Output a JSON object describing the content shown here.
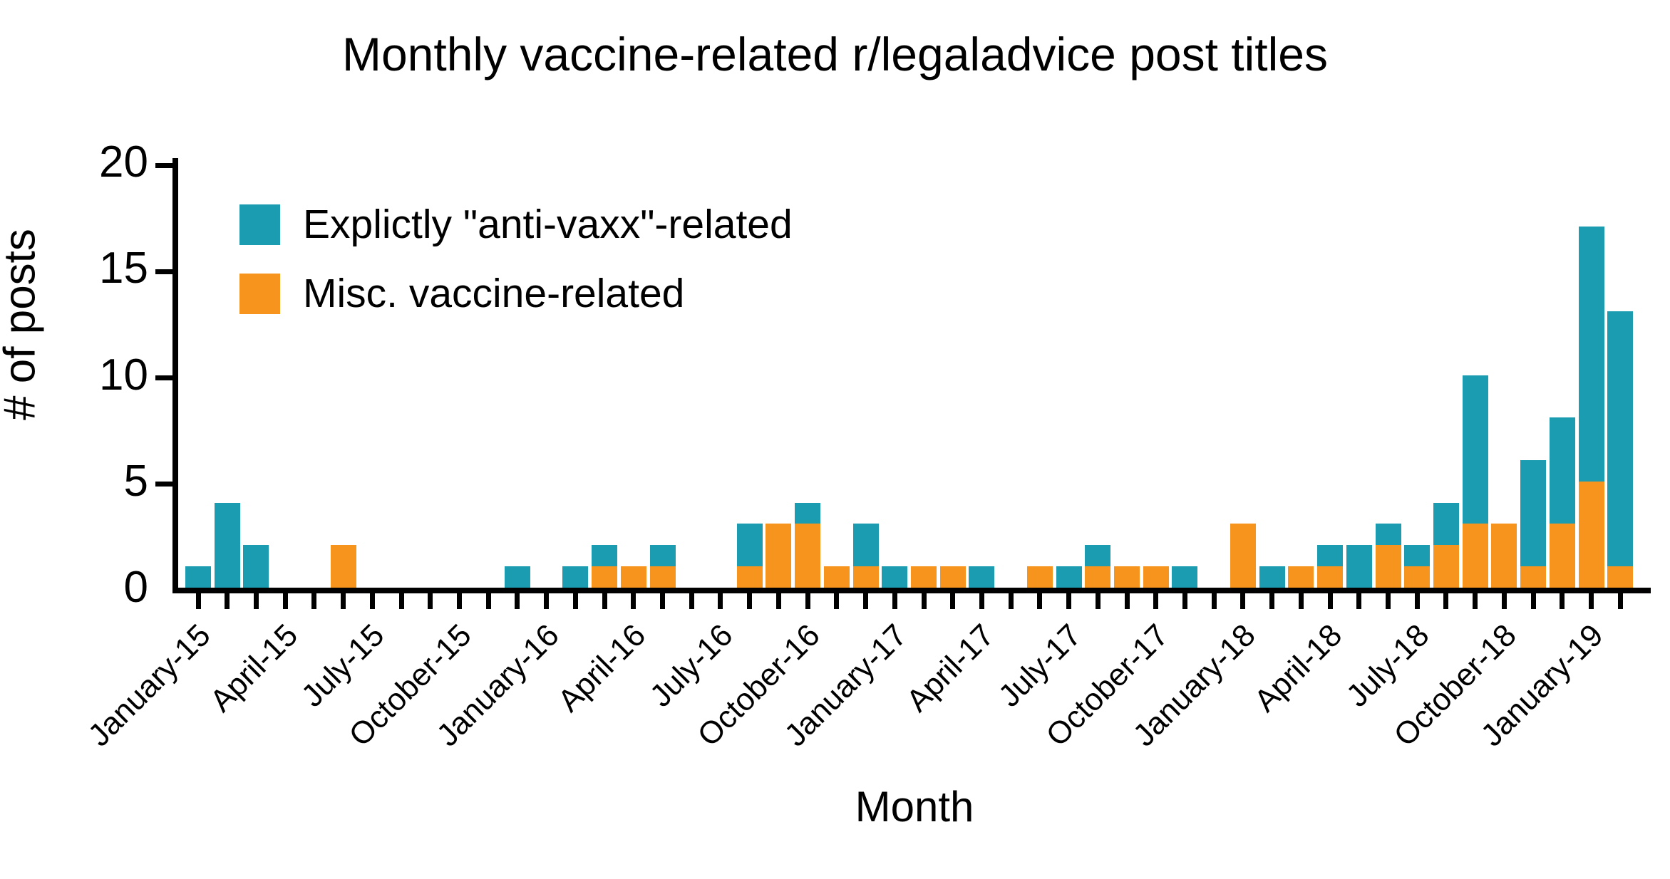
{
  "chart_data": {
    "type": "bar",
    "stacked": true,
    "title": "Monthly vaccine-related r/legaladvice post titles",
    "xlabel": "Month",
    "ylabel": "# of posts",
    "ylim": [
      0,
      20
    ],
    "yticks": [
      0,
      5,
      10,
      15,
      20
    ],
    "x_tick_label_every": 3,
    "legend_position": "top-left-inside",
    "grid": false,
    "categories": [
      "January-15",
      "February-15",
      "March-15",
      "April-15",
      "May-15",
      "June-15",
      "July-15",
      "August-15",
      "September-15",
      "October-15",
      "November-15",
      "December-15",
      "January-16",
      "February-16",
      "March-16",
      "April-16",
      "May-16",
      "June-16",
      "July-16",
      "August-16",
      "September-16",
      "October-16",
      "November-16",
      "December-16",
      "January-17",
      "February-17",
      "March-17",
      "April-17",
      "May-17",
      "June-17",
      "July-17",
      "August-17",
      "September-17",
      "October-17",
      "November-17",
      "December-17",
      "January-18",
      "February-18",
      "March-18",
      "April-18",
      "May-18",
      "June-18",
      "July-18",
      "August-18",
      "September-18",
      "October-18",
      "November-18",
      "December-18",
      "January-19",
      "February-19"
    ],
    "series": [
      {
        "name": "Misc. vaccine-related",
        "color": "#f7941e",
        "stack_order": "bottom",
        "values": [
          0,
          0,
          0,
          0,
          0,
          2,
          0,
          0,
          0,
          0,
          0,
          0,
          0,
          0,
          1,
          1,
          1,
          0,
          0,
          1,
          3,
          3,
          1,
          1,
          0,
          1,
          1,
          0,
          0,
          1,
          0,
          1,
          1,
          1,
          0,
          0,
          3,
          0,
          1,
          1,
          0,
          2,
          1,
          2,
          3,
          3,
          1,
          3,
          5,
          1
        ]
      },
      {
        "name": "Explictly \"anti-vaxx\"-related",
        "color": "#1b9cb1",
        "stack_order": "top",
        "values": [
          1,
          4,
          2,
          0,
          0,
          0,
          0,
          0,
          0,
          0,
          0,
          1,
          0,
          1,
          1,
          0,
          1,
          0,
          0,
          2,
          0,
          1,
          0,
          2,
          1,
          0,
          0,
          1,
          0,
          0,
          1,
          1,
          0,
          0,
          1,
          0,
          0,
          1,
          0,
          1,
          2,
          1,
          1,
          2,
          7,
          0,
          5,
          5,
          12,
          12
        ]
      }
    ]
  },
  "labels": {
    "title": "Monthly vaccine-related r/legaladvice post titles",
    "y_axis": "# of posts",
    "x_axis": "Month",
    "legend_anti": "Explictly \"anti-vaxx\"-related",
    "legend_misc": "Misc. vaccine-related"
  },
  "colors": {
    "anti_vaxx": "#1b9cb1",
    "misc": "#f7941e",
    "axis": "#000000",
    "background": "#ffffff"
  }
}
